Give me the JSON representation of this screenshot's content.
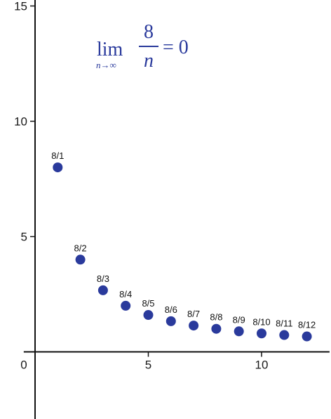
{
  "chart_data": {
    "type": "scatter",
    "title": "",
    "xlabel": "",
    "ylabel": "",
    "xlim": [
      -0.5,
      13.0
    ],
    "ylim": [
      -3.0,
      15.5
    ],
    "x_ticks": [
      0,
      5,
      10
    ],
    "y_ticks": [
      5,
      10,
      15
    ],
    "x_tick_labels": [
      "0",
      "5",
      "10"
    ],
    "y_tick_labels": [
      "5",
      "10",
      "15"
    ],
    "grid": false,
    "point_color": "#2a3a9c",
    "series": [
      {
        "x": [
          1,
          2,
          3,
          4,
          5,
          6,
          7,
          8,
          9,
          10,
          11,
          12
        ],
        "y": [
          8,
          4,
          2.67,
          2,
          1.6,
          1.33,
          1.14,
          1,
          0.89,
          0.8,
          0.73,
          0.67
        ],
        "labels": [
          "8/1",
          "8/2",
          "8/3",
          "8/4",
          "8/5",
          "8/6",
          "8/7",
          "8/8",
          "8/9",
          "8/10",
          "8/11",
          "8/12"
        ]
      }
    ],
    "annotation": {
      "lim": "lim",
      "subscript": "n→∞",
      "numerator": "8",
      "denominator": "n",
      "rhs": "= 0"
    }
  }
}
